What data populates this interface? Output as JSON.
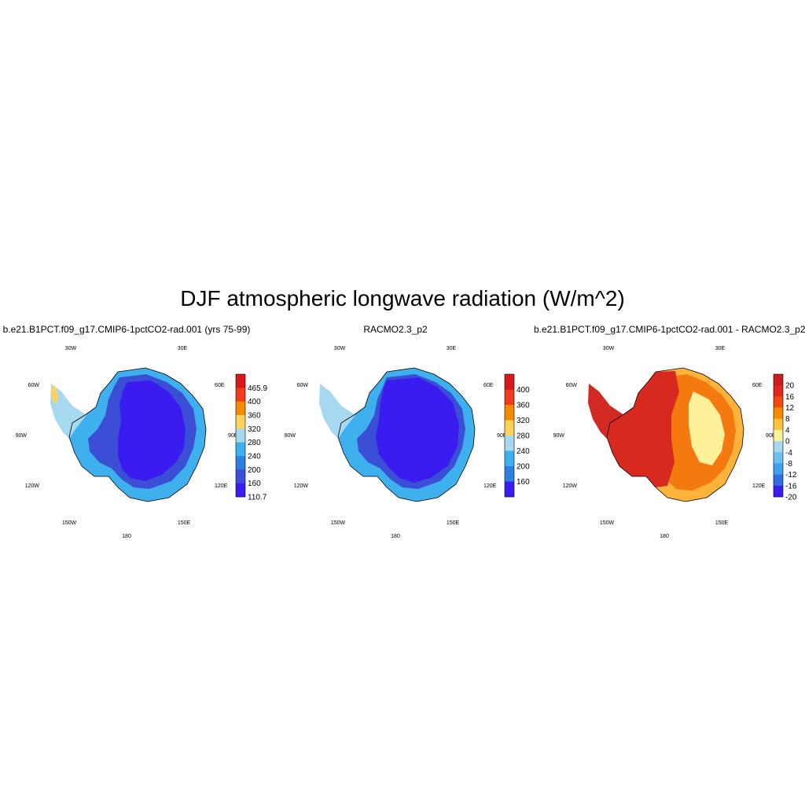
{
  "title": "DJF atmospheric longwave radiation (W/m^2)",
  "lon_labels": {
    "w30": "30W",
    "e30": "30E",
    "w60": "60W",
    "e60": "60E",
    "w90": "90W",
    "e90": "90E",
    "w120": "120W",
    "e120": "120E",
    "w150": "150W",
    "e150": "150E",
    "l180": "180"
  },
  "panels": [
    {
      "id": "model",
      "title": "b.e21.B1PCT.f09_g17.CMIP6-1pctCO2-rad.001 (yrs 75-99)",
      "colorbar": {
        "labels": [
          "465.9",
          "400",
          "360",
          "320",
          "280",
          "240",
          "200",
          "160",
          "110.7"
        ],
        "colors": [
          "#d7191c",
          "#f03b20",
          "#f58b00",
          "#ffd35a",
          "#a6d8f0",
          "#3fb0ee",
          "#2f7fe0",
          "#3b4fd6",
          "#3a1cf0"
        ]
      },
      "fields": {
        "peninsula": "#a6d8f0",
        "coast": "#3fb0ee",
        "interior_ring": "#3b4fd6",
        "core": "#3a1cf0",
        "tip": "#ffd35a"
      }
    },
    {
      "id": "obs",
      "title": "RACMO2.3_p2",
      "colorbar": {
        "labels": [
          "400",
          "360",
          "320",
          "280",
          "240",
          "200",
          "160"
        ],
        "colors": [
          "#d7191c",
          "#f03b20",
          "#f58b00",
          "#ffd35a",
          "#a6d8f0",
          "#3fb0ee",
          "#2f7fe0",
          "#3a1cf0"
        ]
      },
      "fields": {
        "peninsula": "#a6d8f0",
        "coast": "#3fb0ee",
        "interior_ring": "#3b4fd6",
        "core": "#3a1cf0"
      }
    },
    {
      "id": "diff",
      "title": "b.e21.B1PCT.f09_g17.CMIP6-1pctCO2-rad.001 - RACMO2.3_p2",
      "colorbar": {
        "labels": [
          "20",
          "16",
          "12",
          "8",
          "4",
          "0",
          "-4",
          "-8",
          "-12",
          "-16",
          "-20"
        ],
        "colors": [
          "#c81e1e",
          "#e0261e",
          "#f04a10",
          "#f58b00",
          "#ffc23a",
          "#fff19a",
          "#a6d8f0",
          "#6dc0f0",
          "#3fa0ee",
          "#2f6fe0",
          "#3a1cf0"
        ]
      },
      "fields": {
        "peninsula": "#d22a22",
        "coast": "#ffb33a",
        "interior_ring": "#f47a10",
        "core": "#d7291f",
        "pale": "#fff19a"
      }
    }
  ]
}
